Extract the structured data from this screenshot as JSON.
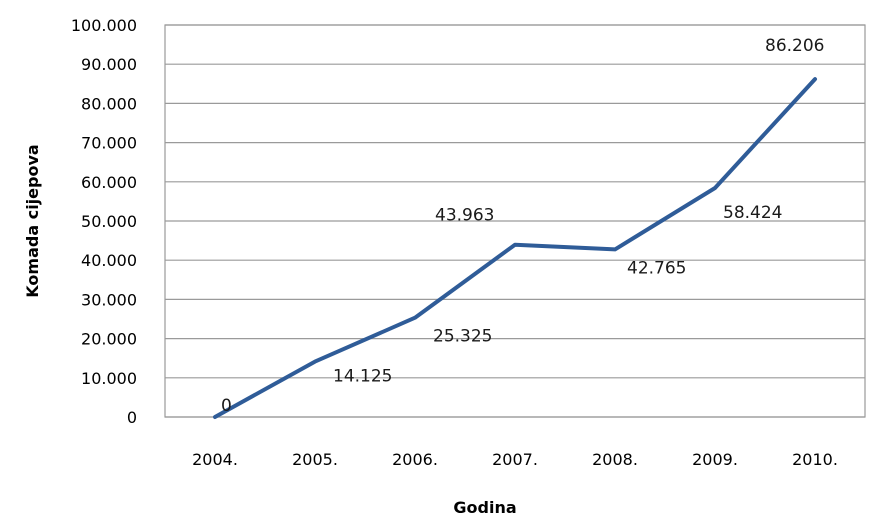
{
  "chart_data": {
    "type": "line",
    "title": "",
    "xlabel": "Godina",
    "ylabel": "Komada cijepova",
    "categories": [
      "2004.",
      "2005.",
      "2006.",
      "2007.",
      "2008.",
      "2009.",
      "2010."
    ],
    "series": [
      {
        "values": [
          0,
          14125,
          25325,
          43963,
          42765,
          58424,
          86206
        ],
        "value_labels": [
          "0",
          "14.125",
          "25.325",
          "43.963",
          "42.765",
          "58.424",
          "86.206"
        ],
        "color": "#2f5c98"
      }
    ],
    "ylim": [
      0,
      100000
    ],
    "y_ticks": [
      0,
      10000,
      20000,
      30000,
      40000,
      50000,
      60000,
      70000,
      80000,
      90000,
      100000
    ],
    "y_tick_labels": [
      "0",
      "10.000",
      "20.000",
      "30.000",
      "40.000",
      "50.000",
      "60.000",
      "70.000",
      "80.000",
      "90.000",
      "100.000"
    ],
    "grid": true,
    "legend": "none"
  }
}
